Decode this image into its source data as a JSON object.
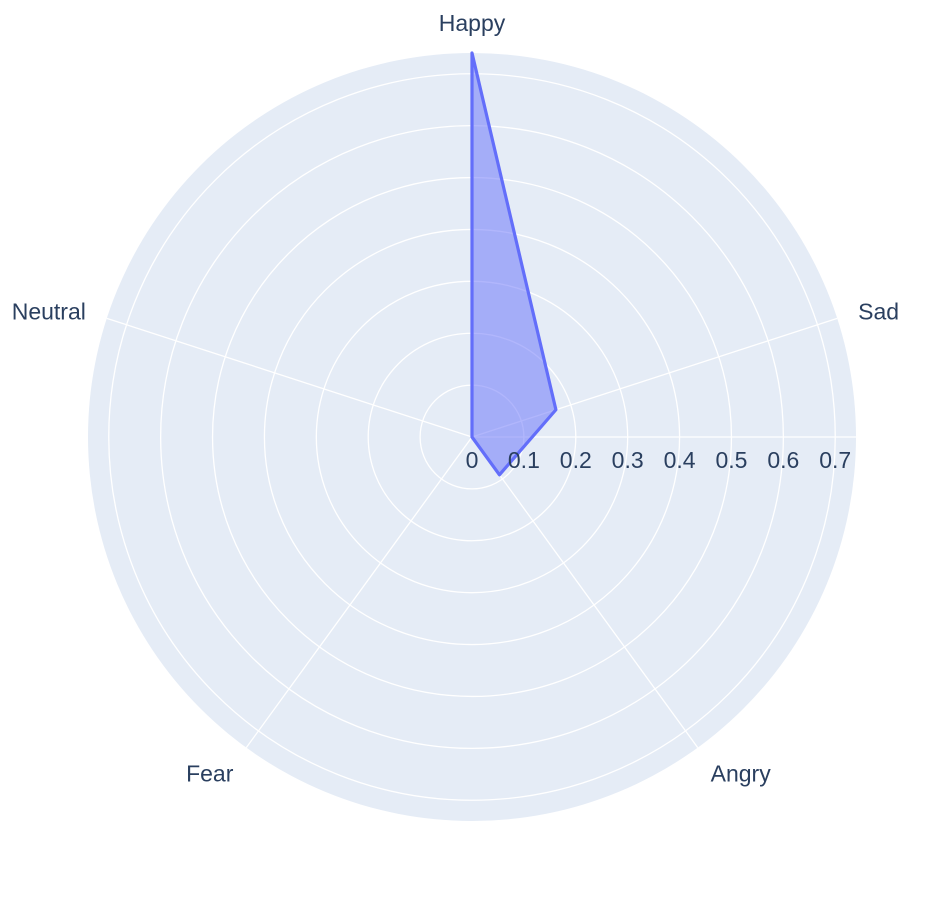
{
  "chart_data": {
    "type": "radar",
    "title": "",
    "categories": [
      "Happy",
      "Sad",
      "Angry",
      "Fear",
      "Neutral"
    ],
    "series": [
      {
        "name": "",
        "values": [
          0.74,
          0.17,
          0.09,
          0.0,
          0.0
        ],
        "color": "#636efa",
        "fill_color": "#636efa",
        "fill_opacity": 0.5
      }
    ],
    "radial_range": [
      0,
      0.74
    ],
    "radial_ticks": [
      0,
      0.1,
      0.2,
      0.3,
      0.4,
      0.5,
      0.6,
      0.7
    ],
    "radial_tick_labels": [
      "0",
      "0.1",
      "0.2",
      "0.3",
      "0.4",
      "0.5",
      "0.6",
      "0.7"
    ],
    "grid": true,
    "background_color": "#e5ecf6",
    "grid_color": "#ffffff",
    "label_color": "#2a3f5f"
  }
}
